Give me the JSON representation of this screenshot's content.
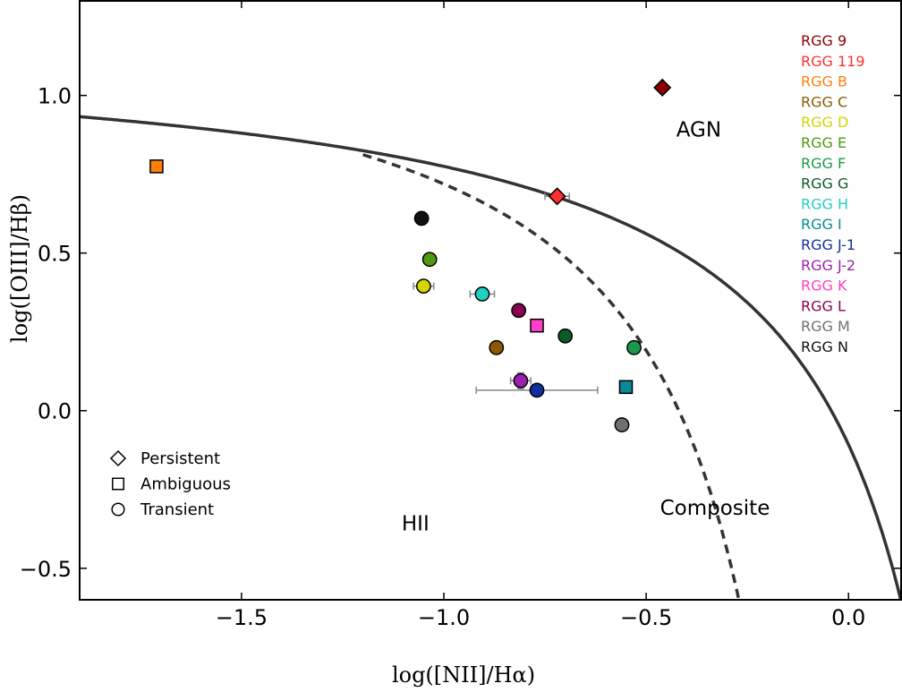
{
  "chart_data": {
    "type": "scatter",
    "xlabel": "log([NII]/Hα)",
    "ylabel": "log([OIII]/Hβ)",
    "xlim": [
      -1.9,
      0.13
    ],
    "ylim": [
      -0.6,
      1.3
    ],
    "x_ticks": [
      {
        "value": -1.5,
        "label": "−1.5"
      },
      {
        "value": -1.0,
        "label": "−1.0"
      },
      {
        "value": -0.5,
        "label": "−0.5"
      },
      {
        "value": 0.0,
        "label": "0.0"
      }
    ],
    "y_ticks": [
      {
        "value": -0.5,
        "label": "−0.5"
      },
      {
        "value": 0.0,
        "label": "0.0"
      },
      {
        "value": 0.5,
        "label": "0.5"
      },
      {
        "value": 1.0,
        "label": "1.0"
      }
    ],
    "region_labels": [
      {
        "text": "AGN",
        "x": -0.37,
        "y": 0.87
      },
      {
        "text": "Composite",
        "x": -0.33,
        "y": -0.33
      },
      {
        "text": "HII",
        "x": -1.07,
        "y": -0.38
      }
    ],
    "marker_legend": [
      {
        "marker": "diamond",
        "label": "Persistent"
      },
      {
        "marker": "square",
        "label": "Ambiguous"
      },
      {
        "marker": "circle",
        "label": "Transient"
      }
    ],
    "series": [
      {
        "name": "RGG 9",
        "color": "#8b0000",
        "marker": "diamond",
        "x": -0.46,
        "y": 1.025
      },
      {
        "name": "RGG 119",
        "color": "#ff3030",
        "marker": "diamond",
        "x": -0.72,
        "y": 0.68,
        "xerr": 0.03
      },
      {
        "name": "RGG B",
        "color": "#ff7f0e",
        "marker": "square",
        "x": -1.71,
        "y": 0.775
      },
      {
        "name": "RGG C",
        "color": "#8b5a00",
        "marker": "circle",
        "x": -0.87,
        "y": 0.2
      },
      {
        "name": "RGG D",
        "color": "#d4d400",
        "marker": "circle",
        "x": -1.05,
        "y": 0.395,
        "xerr": 0.025
      },
      {
        "name": "RGG E",
        "color": "#4f9a14",
        "marker": "circle",
        "x": -1.035,
        "y": 0.48
      },
      {
        "name": "RGG F",
        "color": "#1a9a4a",
        "marker": "circle",
        "x": -0.53,
        "y": 0.2
      },
      {
        "name": "RGG G",
        "color": "#0b5a2a",
        "marker": "circle",
        "x": -0.7,
        "y": 0.237
      },
      {
        "name": "RGG H",
        "color": "#20d0c0",
        "marker": "circle",
        "x": -0.905,
        "y": 0.37,
        "xerr": 0.03
      },
      {
        "name": "RGG I",
        "color": "#0a8a96",
        "marker": "square",
        "x": -0.55,
        "y": 0.075
      },
      {
        "name": "RGG J-1",
        "color": "#1030a0",
        "marker": "circle",
        "x": -0.77,
        "y": 0.065,
        "xerr": 0.15
      },
      {
        "name": "RGG J-2",
        "color": "#9a20b0",
        "marker": "circle",
        "x": -0.81,
        "y": 0.095,
        "xerr": 0.025,
        "yerr": 0.025
      },
      {
        "name": "RGG K",
        "color": "#ff40c8",
        "marker": "square",
        "x": -0.77,
        "y": 0.27
      },
      {
        "name": "RGG L",
        "color": "#8a0050",
        "marker": "circle",
        "x": -0.815,
        "y": 0.318
      },
      {
        "name": "RGG M",
        "color": "#707070",
        "marker": "circle",
        "x": -0.56,
        "y": -0.045
      },
      {
        "name": "RGG N",
        "color": "#111111",
        "marker": "circle",
        "x": -1.055,
        "y": 0.61
      }
    ]
  }
}
